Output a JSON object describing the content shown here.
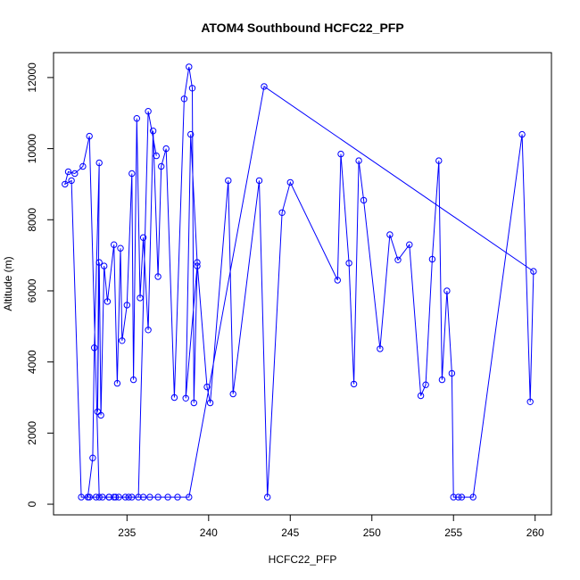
{
  "chart_data": {
    "type": "line",
    "title": "ATOM4 Southbound HCFC22_PFP",
    "xlabel": "HCFC22_PFP",
    "ylabel": "Altitude (m)",
    "xlim": [
      230.5,
      261
    ],
    "ylim": [
      -300,
      12700
    ],
    "xticks": [
      235,
      240,
      245,
      250,
      255,
      260
    ],
    "yticks": [
      0,
      2000,
      4000,
      6000,
      8000,
      10000,
      12000
    ],
    "grid": false,
    "line_color": "#0000ff",
    "markers": "open-circle",
    "series": [
      {
        "x": [
          232.6,
          232.9,
          233.0,
          233.3,
          233.2,
          233.3,
          233.4,
          233.6,
          233.8,
          234.2,
          234.4,
          234.6,
          234.7,
          235.0,
          235.3,
          235.4,
          235.6,
          235.8,
          236.0,
          236.3,
          236.6,
          236.9,
          237.1,
          237.4,
          237.9,
          238.5,
          238.8,
          239.0,
          239.1,
          239.3,
          238.6,
          238.9,
          239.3,
          239.9,
          240.1,
          241.2,
          241.5,
          243.1,
          243.6,
          244.5,
          245.0,
          247.9,
          248.1,
          248.6,
          248.9,
          249.2,
          249.5,
          250.5,
          251.1,
          251.6,
          252.3,
          253.0,
          253.3,
          253.7,
          254.1,
          254.3,
          254.6,
          254.9,
          255.0,
          255.3,
          255.5,
          256.2,
          259.2,
          259.7,
          259.9,
          243.4,
          238.8,
          238.1,
          237.5,
          236.9,
          236.4,
          236.0,
          235.3,
          234.9,
          234.3,
          234.2,
          233.9,
          233.5,
          233.1,
          232.7,
          232.2,
          231.6,
          231.2,
          231.4,
          231.8,
          232.3,
          232.7,
          233.3,
          233.9,
          234.5,
          235.1,
          235.7,
          236.3,
          236.8
        ],
        "y": [
          200,
          1300,
          4400,
          9600,
          2600,
          6800,
          2500,
          6700,
          5700,
          7300,
          3400,
          7200,
          4600,
          5600,
          9300,
          3500,
          10850,
          5800,
          7500,
          4900,
          10500,
          6400,
          9500,
          10000,
          3000,
          11400,
          12300,
          11700,
          2850,
          6700,
          2980,
          10400,
          6800,
          3300,
          2850,
          9100,
          3100,
          9100,
          200,
          8200,
          9050,
          6300,
          9850,
          6780,
          3380,
          9660,
          8550,
          4370,
          7580,
          6870,
          7300,
          3050,
          3360,
          6890,
          9660,
          3500,
          6000,
          3680,
          200,
          200,
          200,
          200,
          10400,
          2880,
          6550,
          11750,
          200,
          200,
          200,
          200,
          200,
          200,
          200,
          200,
          200,
          200,
          200,
          200,
          200,
          200,
          200,
          9100,
          9000,
          9350,
          9300,
          9500,
          10350,
          200,
          200,
          200,
          200,
          200,
          11050,
          9800
        ]
      }
    ]
  }
}
